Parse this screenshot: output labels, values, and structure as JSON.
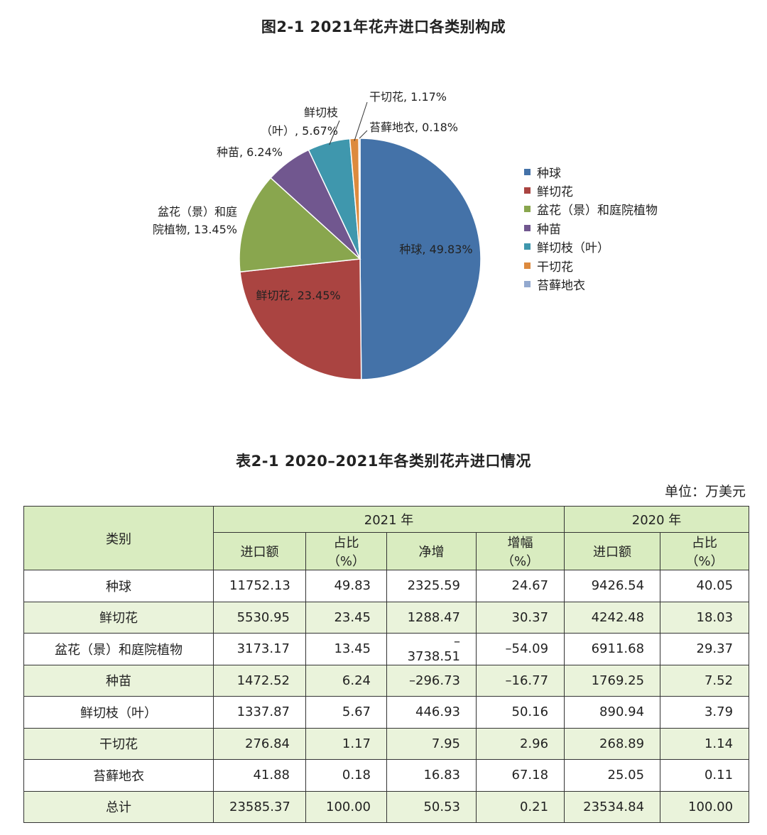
{
  "chart_title": "图2-1  2021年花卉进口各类别构成",
  "chart_data": {
    "type": "pie",
    "title": "图2-1  2021年花卉进口各类别构成",
    "legend_position": "right",
    "slices": [
      {
        "name": "种球",
        "value": 49.83,
        "label": "种球, 49.83%",
        "color": "#4472a8"
      },
      {
        "name": "鲜切花",
        "value": 23.45,
        "label": "鲜切花, 23.45%",
        "color": "#aa4441"
      },
      {
        "name": "盆花（景）和庭院植物",
        "value": 13.45,
        "label": "盆花（景）和庭院植物, 13.45%",
        "color": "#89a64e"
      },
      {
        "name": "种苗",
        "value": 6.24,
        "label": "种苗, 6.24%",
        "color": "#71578f"
      },
      {
        "name": "鲜切枝（叶）",
        "value": 5.67,
        "label": "鲜切枝（叶）, 5.67%",
        "color": "#3f97ad"
      },
      {
        "name": "干切花",
        "value": 1.17,
        "label": "干切花, 1.17%",
        "color": "#dd8a3e"
      },
      {
        "name": "苔藓地衣",
        "value": 0.18,
        "label": "苔藓地衣, 0.18%",
        "color": "#93a9cf"
      }
    ]
  },
  "table": {
    "title": "表2-1  2020–2021年各类别花卉进口情况",
    "unit": "单位：万美元",
    "header": {
      "category": "类别",
      "year_2021": "2021 年",
      "year_2020": "2020 年",
      "cols_2021": [
        "进口额",
        "占比（%）",
        "净增",
        "增幅（%）"
      ],
      "cols_2020": [
        "进口额",
        "占比（%）"
      ]
    },
    "rows": [
      [
        "种球",
        "11752.13",
        "49.83",
        "2325.59",
        "24.67",
        "9426.54",
        "40.05"
      ],
      [
        "鲜切花",
        "5530.95",
        "23.45",
        "1288.47",
        "30.37",
        "4242.48",
        "18.03"
      ],
      [
        "盆花（景）和庭院植物",
        "3173.17",
        "13.45",
        "–3738.51",
        "–54.09",
        "6911.68",
        "29.37"
      ],
      [
        "种苗",
        "1472.52",
        "6.24",
        "–296.73",
        "–16.77",
        "1769.25",
        "7.52"
      ],
      [
        "鲜切枝（叶）",
        "1337.87",
        "5.67",
        "446.93",
        "50.16",
        "890.94",
        "3.79"
      ],
      [
        "干切花",
        "276.84",
        "1.17",
        "7.95",
        "2.96",
        "268.89",
        "1.14"
      ],
      [
        "苔藓地衣",
        "41.88",
        "0.18",
        "16.83",
        "67.18",
        "25.05",
        "0.11"
      ],
      [
        "总计",
        "23585.37",
        "100.00",
        "50.53",
        "0.21",
        "23534.84",
        "100.00"
      ]
    ]
  }
}
